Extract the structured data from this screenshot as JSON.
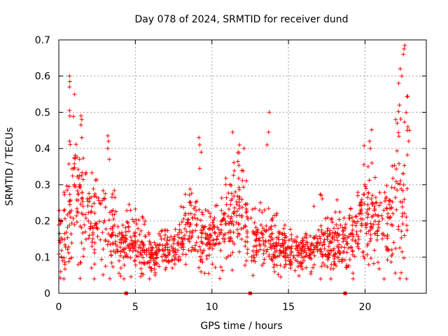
{
  "chart_data": {
    "type": "scatter",
    "title": "Day 078 of 2024, SRMTID for receiver dund",
    "xlabel": "GPS time / hours",
    "ylabel": "SRMTID / TECUs",
    "xlim": [
      0,
      24
    ],
    "ylim": [
      0,
      0.7
    ],
    "xticks": [
      0,
      5,
      10,
      15,
      20
    ],
    "yticks": [
      0,
      0.1,
      0.2,
      0.3,
      0.4,
      0.5,
      0.6,
      0.7
    ],
    "grid": true,
    "marker": "+",
    "colors": {
      "series": "#ff0000",
      "grid": "#a0a0a0",
      "axis": "#000000"
    },
    "series": [
      {
        "name": "SRMTID",
        "profile": [
          [
            0.0,
            0.14,
            0.05
          ],
          [
            0.5,
            0.2,
            0.08
          ],
          [
            1.0,
            0.24,
            0.09
          ],
          [
            1.5,
            0.23,
            0.08
          ],
          [
            2.0,
            0.21,
            0.07
          ],
          [
            2.5,
            0.2,
            0.06
          ],
          [
            3.0,
            0.21,
            0.07
          ],
          [
            3.5,
            0.17,
            0.05
          ],
          [
            4.0,
            0.14,
            0.04
          ],
          [
            4.5,
            0.14,
            0.04
          ],
          [
            5.0,
            0.13,
            0.04
          ],
          [
            5.5,
            0.12,
            0.04
          ],
          [
            6.0,
            0.11,
            0.03
          ],
          [
            6.5,
            0.11,
            0.03
          ],
          [
            7.0,
            0.11,
            0.03
          ],
          [
            7.5,
            0.12,
            0.03
          ],
          [
            8.0,
            0.15,
            0.04
          ],
          [
            8.5,
            0.18,
            0.05
          ],
          [
            9.0,
            0.18,
            0.06
          ],
          [
            9.5,
            0.16,
            0.05
          ],
          [
            10.0,
            0.15,
            0.04
          ],
          [
            10.5,
            0.17,
            0.05
          ],
          [
            11.0,
            0.2,
            0.06
          ],
          [
            11.5,
            0.22,
            0.07
          ],
          [
            12.0,
            0.22,
            0.07
          ],
          [
            12.3,
            0.18,
            0.05
          ],
          [
            12.8,
            0.15,
            0.05
          ],
          [
            13.5,
            0.15,
            0.04
          ],
          [
            14.0,
            0.14,
            0.04
          ],
          [
            15.0,
            0.12,
            0.03
          ],
          [
            16.0,
            0.11,
            0.03
          ],
          [
            16.5,
            0.11,
            0.03
          ],
          [
            17.0,
            0.13,
            0.04
          ],
          [
            18.0,
            0.14,
            0.04
          ],
          [
            18.5,
            0.14,
            0.04
          ],
          [
            19.0,
            0.15,
            0.05
          ],
          [
            19.5,
            0.18,
            0.05
          ],
          [
            20.0,
            0.22,
            0.07
          ],
          [
            20.5,
            0.2,
            0.07
          ],
          [
            21.0,
            0.18,
            0.06
          ],
          [
            21.5,
            0.19,
            0.06
          ],
          [
            22.0,
            0.23,
            0.09
          ],
          [
            22.5,
            0.26,
            0.12
          ],
          [
            22.8,
            0.28,
            0.13
          ]
        ],
        "outliers": [
          [
            0.7,
            0.6
          ],
          [
            0.72,
            0.585
          ],
          [
            0.7,
            0.57
          ],
          [
            0.7,
            0.505
          ],
          [
            0.72,
            0.49
          ],
          [
            0.7,
            0.42
          ],
          [
            1.45,
            0.49
          ],
          [
            1.5,
            0.48
          ],
          [
            1.45,
            0.465
          ],
          [
            1.5,
            0.43
          ],
          [
            3.2,
            0.435
          ],
          [
            3.25,
            0.42
          ],
          [
            3.2,
            0.4
          ],
          [
            3.3,
            0.37
          ],
          [
            9.15,
            0.43
          ],
          [
            9.2,
            0.41
          ],
          [
            9.3,
            0.39
          ],
          [
            9.2,
            0.345
          ],
          [
            11.35,
            0.445
          ],
          [
            11.8,
            0.41
          ],
          [
            12.1,
            0.4
          ],
          [
            13.75,
            0.5
          ],
          [
            13.7,
            0.445
          ],
          [
            13.6,
            0.41
          ],
          [
            20.3,
            0.42
          ],
          [
            20.35,
            0.4
          ],
          [
            20.2,
            0.35
          ],
          [
            20.45,
            0.36
          ],
          [
            22.3,
            0.62
          ],
          [
            22.4,
            0.6
          ],
          [
            22.2,
            0.58
          ],
          [
            22.25,
            0.52
          ],
          [
            22.5,
            0.66
          ],
          [
            22.6,
            0.685
          ],
          [
            22.55,
            0.675
          ],
          [
            22.0,
            0.48
          ],
          [
            22.1,
            0.47
          ],
          [
            22.8,
            0.46
          ],
          [
            22.75,
            0.45
          ],
          [
            22.9,
            0.45
          ],
          [
            22.85,
            0.42
          ]
        ],
        "missing_markers_at_zero": [
          4.4,
          12.5,
          18.7
        ]
      }
    ]
  }
}
